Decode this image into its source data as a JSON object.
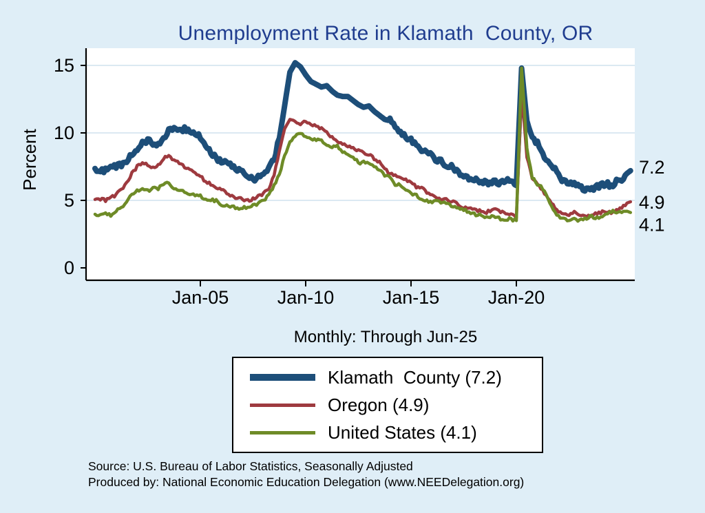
{
  "title": "Unemployment Rate in Klamath  County, OR",
  "subtitle": "Monthly: Through Jun-25",
  "y_axis": {
    "label": "Percent",
    "ticks": [
      0,
      5,
      10,
      15
    ]
  },
  "x_axis": {
    "ticks": [
      {
        "label": "Jan-05",
        "t": 2005
      },
      {
        "label": "Jan-10",
        "t": 2010
      },
      {
        "label": "Jan-15",
        "t": 2015
      },
      {
        "label": "Jan-20",
        "t": 2020
      }
    ]
  },
  "end_labels": [
    {
      "text": "7.2",
      "value": 7.2,
      "dy": -5
    },
    {
      "text": "4.9",
      "value": 4.9,
      "dy": 1
    },
    {
      "text": "4.1",
      "value": 4.1,
      "dy": 18
    }
  ],
  "legend": {
    "entries": [
      {
        "label": "Klamath  County (7.2)",
        "color": "#1d4e79",
        "thickness": 10
      },
      {
        "label": "Oregon (4.9)",
        "color": "#9e3a3f",
        "thickness": 5
      },
      {
        "label": "United States (4.1)",
        "color": "#6e8b27",
        "thickness": 5
      }
    ]
  },
  "notes": [
    "Source: U.S. Bureau of Labor Statistics, Seasonally Adjusted",
    "Produced by: National Economic Education Delegation (www.NEEDelegation.org)"
  ],
  "colors": {
    "background": "#dfeef7",
    "plot_background": "#ffffff",
    "gridline": "#cfe2ee",
    "axis": "#000000",
    "title": "#203d8f"
  },
  "chart_data": {
    "type": "line",
    "title": "Unemployment Rate in Klamath  County, OR",
    "xlabel": "",
    "ylabel": "Percent",
    "xlim": [
      1999.6,
      2025.5
    ],
    "ylim": [
      0,
      16
    ],
    "grid": true,
    "legend_position": "bottom-center",
    "x_tick_labels": [
      "Jan-05",
      "Jan-10",
      "Jan-15",
      "Jan-20"
    ],
    "x_start": 2000.0,
    "x_step_years": 0.25,
    "x_end": 2025.417,
    "series": [
      {
        "name": "Klamath County",
        "final_value": 7.2,
        "color": "#1d4e79",
        "line_width": 8,
        "values": [
          7.2,
          7.3,
          7.2,
          7.4,
          7.5,
          7.7,
          8.0,
          8.4,
          8.8,
          9.2,
          9.5,
          9.3,
          9.2,
          9.6,
          10.1,
          10.3,
          10.2,
          10.3,
          10.1,
          9.9,
          9.7,
          9.1,
          8.6,
          8.1,
          7.9,
          7.7,
          7.5,
          7.3,
          7.1,
          6.8,
          6.6,
          6.7,
          6.9,
          7.3,
          8.1,
          9.6,
          12.0,
          14.5,
          15.2,
          14.9,
          14.3,
          13.8,
          13.6,
          13.4,
          13.5,
          13.1,
          12.8,
          12.7,
          12.7,
          12.4,
          12.1,
          11.9,
          12.0,
          11.6,
          11.3,
          11.0,
          10.9,
          10.4,
          10.0,
          9.7,
          9.5,
          9.1,
          8.8,
          8.5,
          8.3,
          8.0,
          7.8,
          7.6,
          7.4,
          7.1,
          6.9,
          6.7,
          6.6,
          6.4,
          6.3,
          6.2,
          6.4,
          6.3,
          6.5,
          6.4,
          6.1,
          14.8,
          10.8,
          9.6,
          9.2,
          8.5,
          7.9,
          7.4,
          6.9,
          6.4,
          6.1,
          6.3,
          6.1,
          5.8,
          5.7,
          5.9,
          6.1,
          6.3,
          6.1,
          6.4,
          6.6,
          7.0,
          7.2
        ]
      },
      {
        "name": "Oregon",
        "final_value": 4.9,
        "color": "#9e3a3f",
        "line_width": 4.5,
        "values": [
          5.0,
          5.1,
          5.0,
          5.2,
          5.4,
          5.8,
          6.3,
          7.0,
          7.5,
          7.8,
          7.6,
          7.4,
          7.6,
          8.1,
          8.3,
          8.0,
          7.8,
          7.5,
          7.3,
          7.1,
          6.8,
          6.4,
          6.2,
          6.0,
          5.8,
          5.5,
          5.3,
          5.2,
          5.1,
          5.0,
          5.1,
          5.3,
          5.5,
          5.9,
          6.9,
          8.6,
          10.3,
          11.0,
          10.9,
          10.7,
          10.8,
          10.7,
          10.5,
          10.3,
          10.0,
          9.7,
          9.4,
          9.2,
          9.0,
          8.9,
          8.7,
          8.5,
          8.4,
          8.1,
          7.8,
          7.3,
          7.0,
          6.8,
          6.7,
          6.5,
          6.3,
          6.0,
          5.9,
          5.6,
          5.4,
          5.2,
          5.1,
          5.0,
          4.9,
          4.7,
          4.5,
          4.4,
          4.3,
          4.2,
          4.1,
          4.2,
          4.3,
          4.2,
          4.1,
          4.0,
          3.7,
          13.2,
          8.2,
          6.6,
          6.3,
          5.7,
          5.2,
          4.6,
          4.2,
          4.0,
          3.9,
          4.1,
          4.0,
          3.9,
          3.8,
          4.0,
          4.1,
          4.2,
          4.1,
          4.3,
          4.5,
          4.8,
          4.9
        ]
      },
      {
        "name": "United States",
        "final_value": 4.1,
        "color": "#6e8b27",
        "line_width": 4.5,
        "values": [
          4.0,
          3.9,
          4.0,
          3.9,
          4.2,
          4.4,
          4.8,
          5.5,
          5.7,
          5.8,
          5.7,
          5.9,
          5.9,
          6.2,
          6.3,
          5.9,
          5.7,
          5.6,
          5.4,
          5.4,
          5.3,
          5.1,
          5.0,
          5.0,
          4.7,
          4.6,
          4.6,
          4.4,
          4.5,
          4.5,
          4.6,
          4.8,
          5.0,
          5.4,
          6.1,
          6.9,
          8.3,
          9.3,
          9.8,
          10.0,
          9.8,
          9.6,
          9.5,
          9.5,
          9.1,
          9.0,
          9.0,
          8.6,
          8.3,
          8.2,
          7.8,
          7.8,
          7.7,
          7.5,
          7.2,
          6.9,
          6.7,
          6.2,
          6.1,
          5.7,
          5.5,
          5.4,
          5.1,
          5.0,
          4.9,
          4.9,
          4.9,
          4.7,
          4.6,
          4.4,
          4.3,
          4.1,
          4.0,
          3.9,
          3.8,
          3.8,
          3.8,
          3.6,
          3.6,
          3.6,
          3.5,
          14.8,
          8.8,
          6.7,
          6.2,
          5.9,
          5.1,
          4.2,
          3.8,
          3.6,
          3.5,
          3.6,
          3.5,
          3.6,
          3.8,
          3.7,
          3.8,
          4.0,
          4.2,
          4.1,
          4.1,
          4.2,
          4.1
        ]
      }
    ]
  }
}
